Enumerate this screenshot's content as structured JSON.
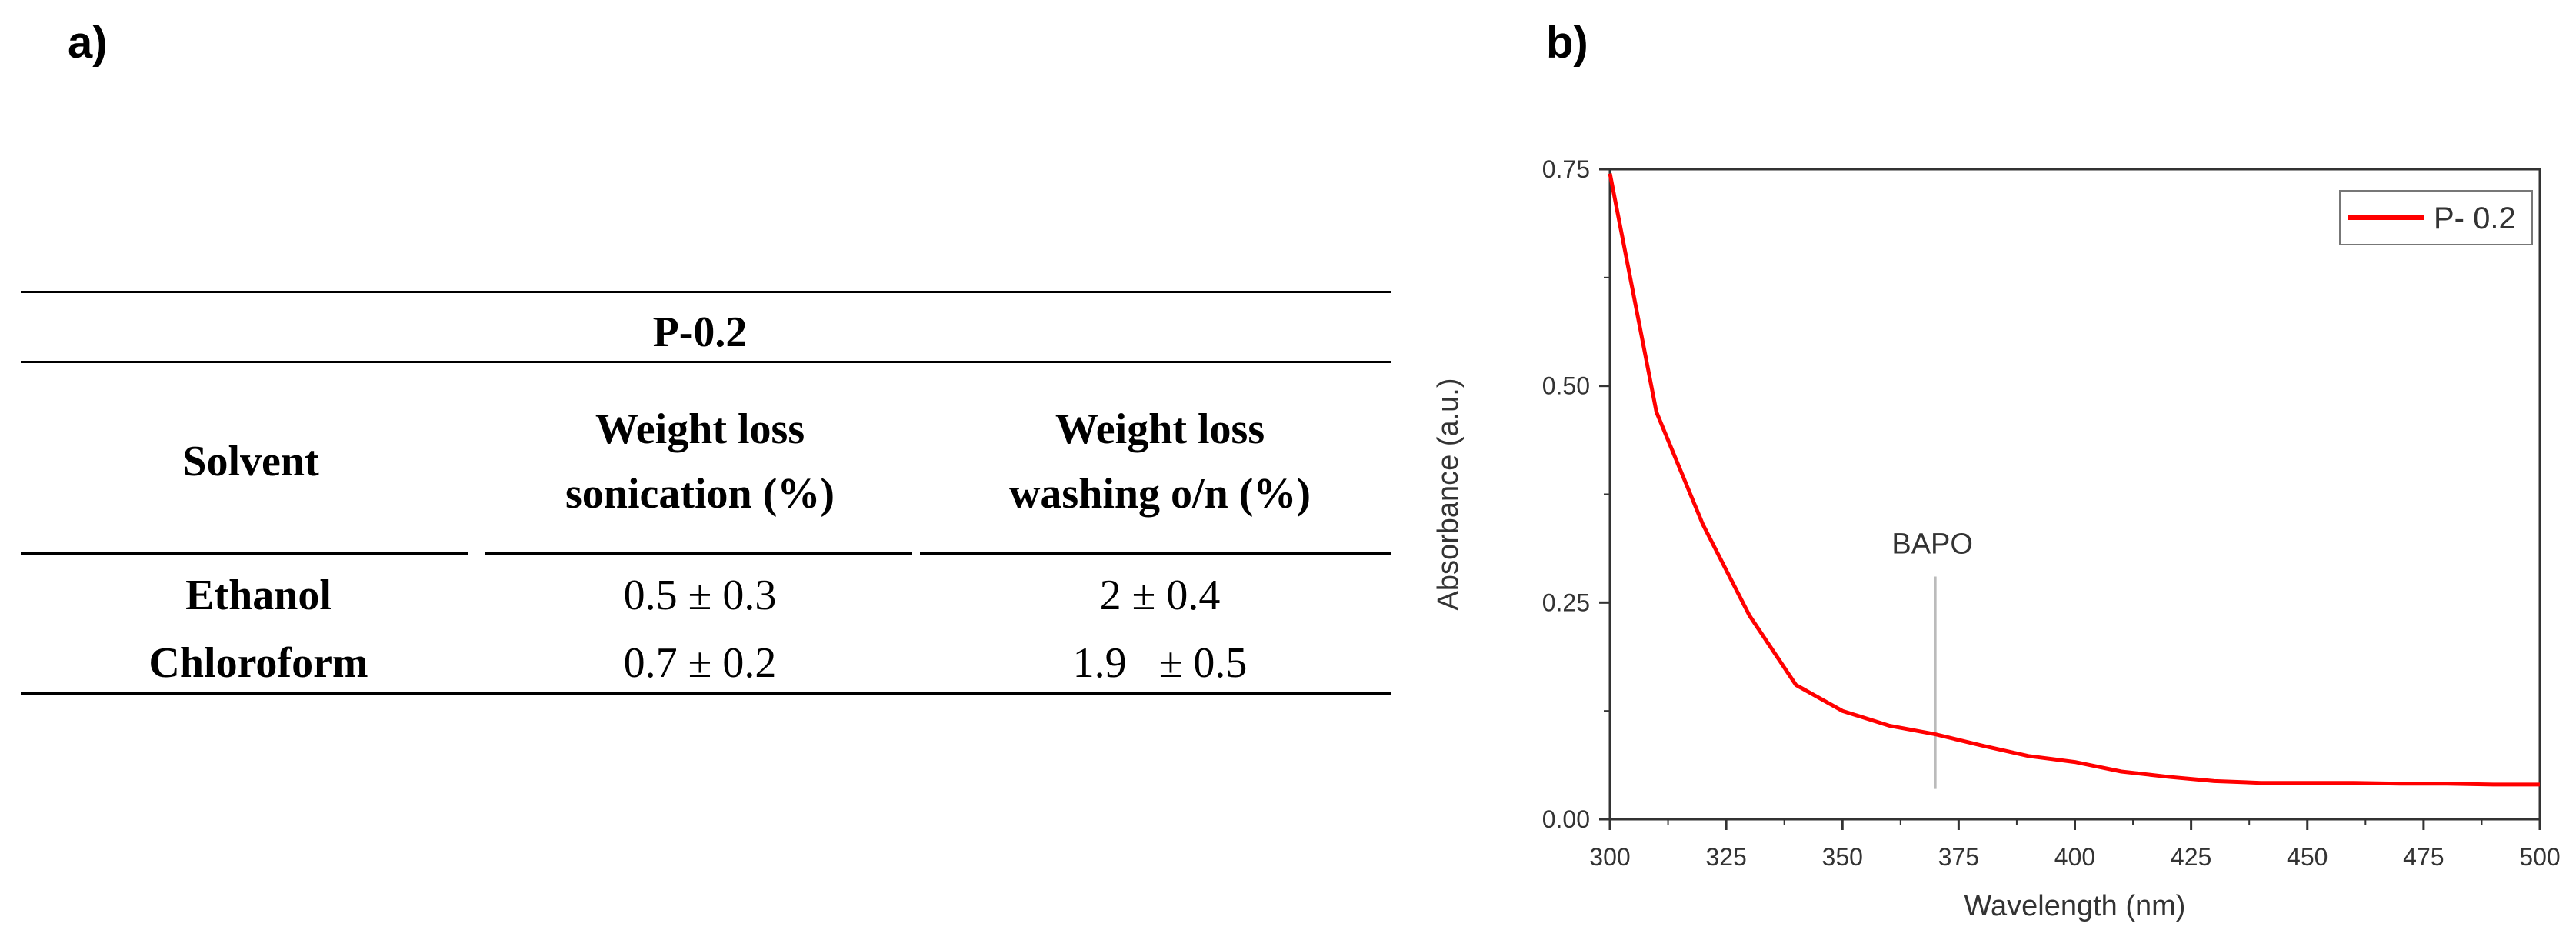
{
  "panel_a": {
    "label": "a)",
    "table": {
      "title": "P-0.2",
      "headers": {
        "solvent": "Solvent",
        "sonication_line1": "Weight loss",
        "sonication_line2": "sonication (%)",
        "washing_line1": "Weight loss",
        "washing_line2": "washing o/n (%)"
      },
      "rows": [
        {
          "solvent": "Ethanol",
          "sonication": "0.5 ± 0.3",
          "washing": "2 ± 0.4"
        },
        {
          "solvent": "Chloroform",
          "sonication": "0.7 ± 0.2",
          "washing": "1.9   ± 0.5"
        }
      ]
    }
  },
  "panel_b": {
    "label": "b)"
  },
  "chart_data": {
    "type": "line",
    "xlabel": "Wavelength (nm)",
    "ylabel": "Absorbance (a.u.)",
    "xlim": [
      300,
      500
    ],
    "ylim": [
      0,
      0.75
    ],
    "x_ticks": [
      300,
      325,
      350,
      375,
      400,
      425,
      450,
      475,
      500
    ],
    "x_tick_labels": [
      "300",
      "325",
      "350",
      "375",
      "400",
      "425",
      "450",
      "475",
      "500"
    ],
    "y_ticks": [
      0,
      0.25,
      0.5,
      0.75
    ],
    "y_tick_labels": [
      "0.00",
      "0.25",
      "0.50",
      "0.75"
    ],
    "legend_position": "top-right",
    "series": [
      {
        "name": "P- 0.2",
        "color": "#ff0000",
        "x": [
          300,
          310,
          320,
          330,
          340,
          350,
          360,
          370,
          380,
          390,
          400,
          410,
          420,
          430,
          440,
          450,
          460,
          470,
          480,
          490,
          500
        ],
        "values": [
          0.745,
          0.47,
          0.34,
          0.235,
          0.155,
          0.125,
          0.108,
          0.098,
          0.085,
          0.073,
          0.066,
          0.055,
          0.049,
          0.044,
          0.042,
          0.042,
          0.042,
          0.041,
          0.041,
          0.04,
          0.04
        ]
      }
    ],
    "annotations": [
      {
        "text": "BAPO",
        "x": 370,
        "y_from": 0.035,
        "y_to": 0.28
      }
    ]
  }
}
